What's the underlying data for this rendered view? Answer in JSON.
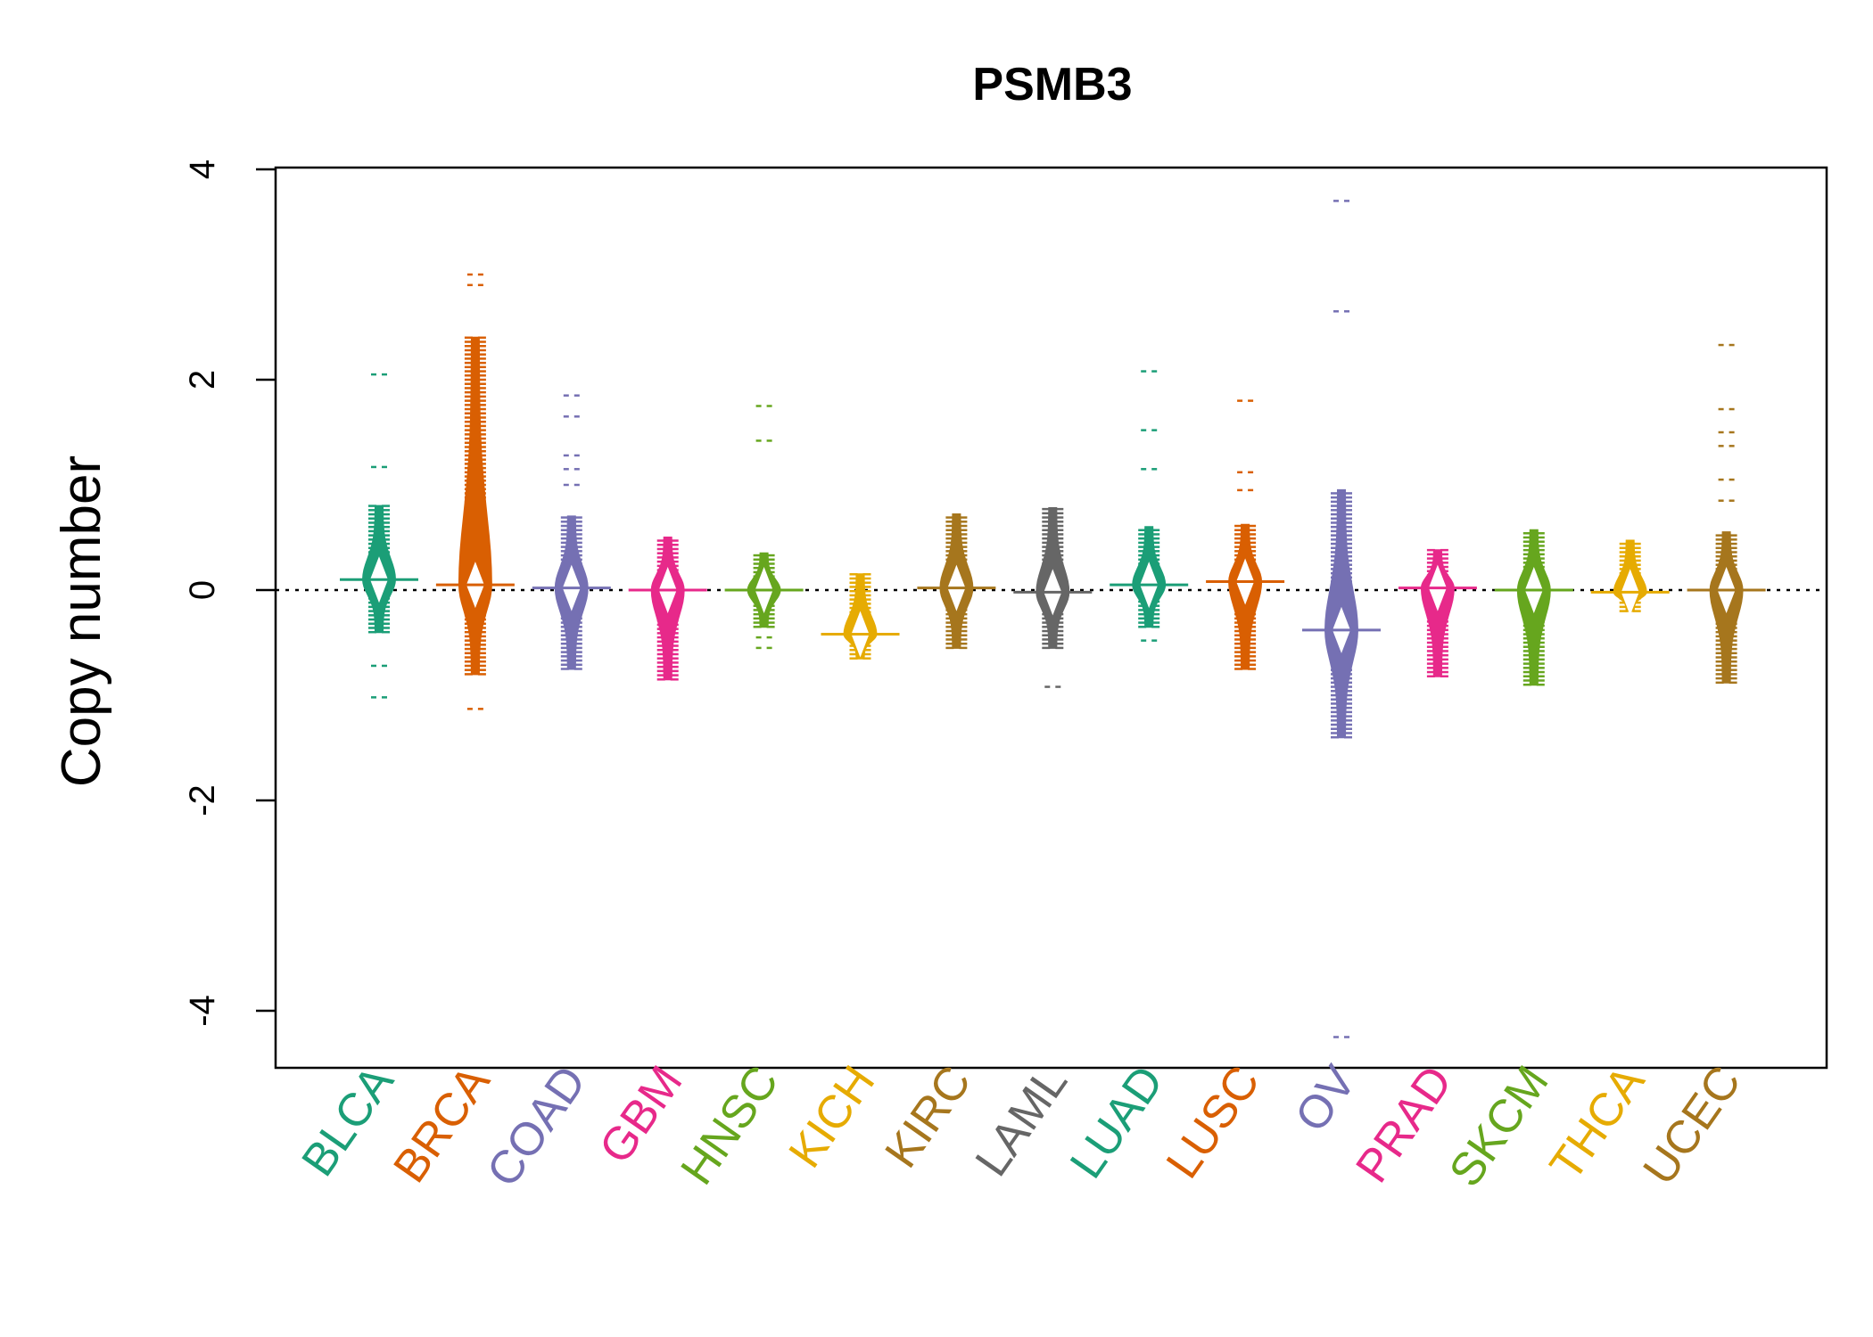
{
  "chart_data": {
    "type": "beanplot",
    "title": "PSMB3",
    "xlabel": "",
    "ylabel": "Copy number",
    "ylim": [
      -4.6,
      4
    ],
    "yticks": [
      -4,
      -2,
      0,
      2,
      4
    ],
    "ytick_labels": [
      "-4",
      "-2",
      "0",
      "2",
      "4"
    ],
    "reference_line": 0,
    "categories": [
      "BLCA",
      "BRCA",
      "COAD",
      "GBM",
      "HNSC",
      "KICH",
      "KIRC",
      "LAML",
      "LUAD",
      "LUSC",
      "OV",
      "PRAD",
      "SKCM",
      "THCA",
      "UCEC"
    ],
    "colors": [
      "#1B9E77",
      "#D95F02",
      "#7570B3",
      "#E7298A",
      "#66A61E",
      "#E6AB02",
      "#A6761D",
      "#666666",
      "#1B9E77",
      "#D95F02",
      "#7570B3",
      "#E7298A",
      "#66A61E",
      "#E6AB02",
      "#A6761D"
    ],
    "series": [
      {
        "name": "BLCA",
        "center": 0.1,
        "range": [
          -0.4,
          0.8
        ],
        "outliers": [
          2.05,
          1.17,
          -0.72,
          -1.02
        ]
      },
      {
        "name": "BRCA",
        "center": 0.05,
        "range": [
          -0.8,
          2.4
        ],
        "outliers": [
          3.0,
          2.9,
          -1.13
        ]
      },
      {
        "name": "COAD",
        "center": 0.02,
        "range": [
          -0.75,
          0.7
        ],
        "outliers": [
          1.85,
          1.65,
          1.28,
          1.15,
          1.0
        ]
      },
      {
        "name": "GBM",
        "center": 0.0,
        "range": [
          -0.85,
          0.5
        ],
        "outliers": []
      },
      {
        "name": "HNSC",
        "center": 0.0,
        "range": [
          -0.35,
          0.35
        ],
        "outliers": [
          1.75,
          1.42,
          -0.45,
          -0.55
        ]
      },
      {
        "name": "KICH",
        "center": -0.42,
        "range": [
          -0.65,
          0.15
        ],
        "outliers": []
      },
      {
        "name": "KIRC",
        "center": 0.02,
        "range": [
          -0.55,
          0.72
        ],
        "outliers": []
      },
      {
        "name": "LAML",
        "center": -0.02,
        "range": [
          -0.55,
          0.78
        ],
        "outliers": [
          -0.92
        ]
      },
      {
        "name": "LUAD",
        "center": 0.05,
        "range": [
          -0.35,
          0.6
        ],
        "outliers": [
          2.08,
          1.52,
          1.15,
          -0.48
        ]
      },
      {
        "name": "LUSC",
        "center": 0.08,
        "range": [
          -0.75,
          0.62
        ],
        "outliers": [
          1.8,
          1.12,
          0.95
        ]
      },
      {
        "name": "OV",
        "center": -0.38,
        "range": [
          -1.4,
          0.95
        ],
        "outliers": [
          3.7,
          2.65,
          -4.25
        ]
      },
      {
        "name": "PRAD",
        "center": 0.02,
        "range": [
          -0.82,
          0.38
        ],
        "outliers": []
      },
      {
        "name": "SKCM",
        "center": 0.0,
        "range": [
          -0.9,
          0.57
        ],
        "outliers": []
      },
      {
        "name": "THCA",
        "center": -0.02,
        "range": [
          -0.2,
          0.47
        ],
        "outliers": []
      },
      {
        "name": "UCEC",
        "center": 0.0,
        "range": [
          -0.88,
          0.55
        ],
        "outliers": [
          2.33,
          1.72,
          1.5,
          1.37,
          1.05,
          0.85
        ]
      }
    ]
  }
}
